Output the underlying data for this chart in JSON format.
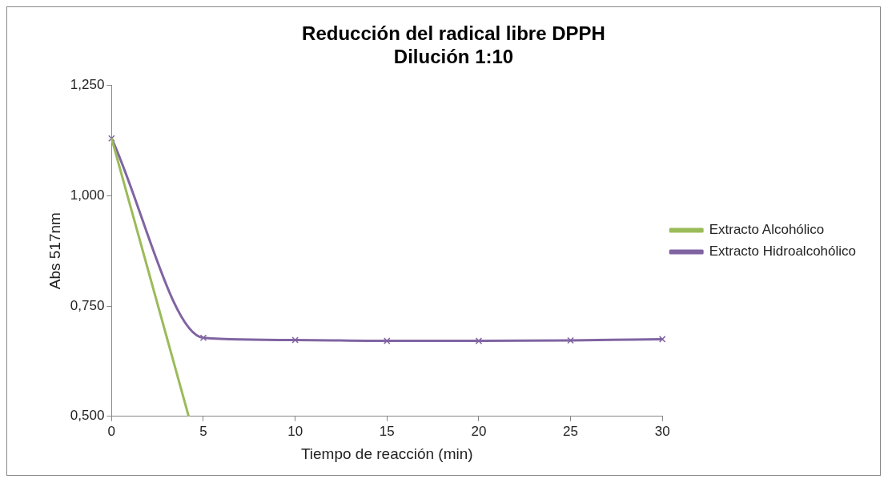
{
  "chart_data": {
    "type": "line",
    "title": "Reducción del radical libre DPPH",
    "subtitle": "Dilución 1:10",
    "xlabel": "Tiempo de reacción (min)",
    "ylabel": "Abs 517nm",
    "xlim": [
      0,
      30
    ],
    "xticks": [
      0,
      5,
      10,
      15,
      20,
      25,
      30
    ],
    "ylim": [
      0.5,
      1.25
    ],
    "yticks": [
      {
        "value": 0.5,
        "label": "0,500"
      },
      {
        "value": 0.75,
        "label": "0,750"
      },
      {
        "value": 1.0,
        "label": "1,000"
      },
      {
        "value": 1.25,
        "label": "1,250"
      }
    ],
    "grid": false,
    "legend": "right",
    "series": [
      {
        "name": "Extracto Alcohólico",
        "color": "#9bbb59",
        "marker": "none",
        "x": [
          0,
          4.2
        ],
        "values": [
          1.13,
          0.5
        ]
      },
      {
        "name": "Extracto Hidroalcohólico",
        "color": "#8064a2",
        "marker": "cross",
        "x": [
          0,
          5,
          10,
          15,
          20,
          25,
          30
        ],
        "values": [
          1.13,
          0.678,
          0.673,
          0.671,
          0.671,
          0.672,
          0.675
        ]
      }
    ]
  }
}
